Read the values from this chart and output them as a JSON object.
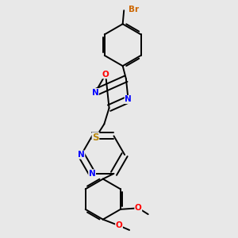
{
  "background_color": "#e8e8e8",
  "bond_color": "#000000",
  "atom_colors": {
    "N": "#0000ff",
    "O": "#ff0000",
    "S": "#b8860b",
    "Br": "#cc6600",
    "C": "#000000"
  },
  "figsize": [
    3.0,
    3.0
  ],
  "dpi": 100,
  "lw": 1.4,
  "fs": 7.5
}
